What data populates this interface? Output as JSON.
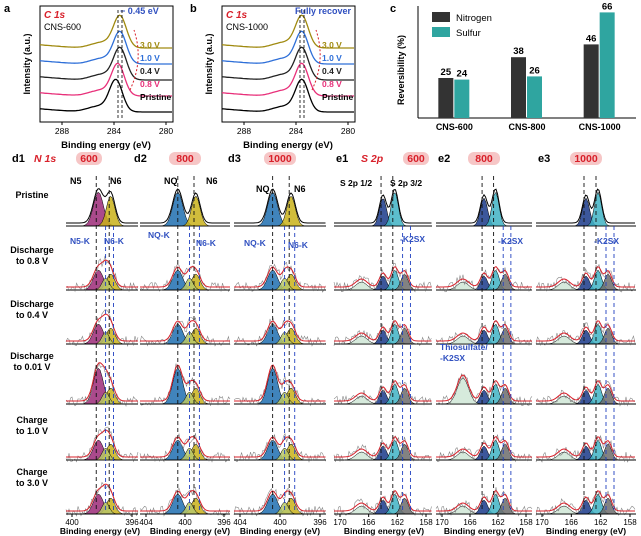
{
  "colors": {
    "pristine": "#000000",
    "v08": "#e8307a",
    "v04": "#222222",
    "v10": "#2e6fd8",
    "v30": "#a08a10",
    "fit": "#d8202a",
    "raw": "#888888",
    "dash_black": "#111111",
    "dash_blue": "#2040c0",
    "annot_blue": "#3050c0",
    "annot_red": "#d8202a",
    "title_red_bg": "#f6c6c6",
    "nitrogen_bar": "#333333",
    "sulfur_bar": "#2fa5a0",
    "n5_fill": "#9c2a78",
    "n6_fill": "#c9b21a",
    "nq_fill": "#1e6fb0",
    "n6k_fill": "#b9c86a",
    "s_dark": "#1a3a8a",
    "s_teal": "#3fb3c4",
    "s_grey": "#6c6c6c",
    "s_light": "#cfe6d6"
  },
  "panel_a": {
    "letter": "a",
    "element": "C 1s",
    "sample": "CNS-600",
    "shift": "− 0.45 eV",
    "ylabel": "Intensity (a.u.)",
    "xlabel": "Binding energy (eV)",
    "xticks": [
      "288",
      "284",
      "280"
    ]
  },
  "panel_b": {
    "letter": "b",
    "element": "C 1s",
    "sample": "CNS-1000",
    "note": "Fully recover",
    "ylabel": "Intensity (a.u.)",
    "xlabel": "Binding energy (eV)",
    "xticks": [
      "288",
      "284",
      "280"
    ]
  },
  "curve_labels": [
    {
      "text": "3.0 V",
      "key": "v30"
    },
    {
      "text": "1.0 V",
      "key": "v10"
    },
    {
      "text": "0.4 V",
      "key": "v04"
    },
    {
      "text": "0.8 V",
      "key": "v08"
    },
    {
      "text": "Pristine",
      "key": "pristine"
    }
  ],
  "chart_data": {
    "type": "bar",
    "panel_letter": "c",
    "categories": [
      "CNS-600",
      "CNS-800",
      "CNS-1000"
    ],
    "series": [
      {
        "name": "Nitrogen",
        "values": [
          25,
          38,
          46
        ]
      },
      {
        "name": "Sulfur",
        "values": [
          24,
          26,
          66
        ]
      }
    ],
    "ylabel": "Reversibility (%)",
    "xlabel": "",
    "ylim": [
      0,
      70
    ],
    "legend": "top-left"
  },
  "d_row": {
    "row_labels": [
      "Pristine",
      "Discharge to 0.8 V",
      "Discharge to 0.4 V",
      "Discharge to 0.01 V",
      "Charge to 1.0 V",
      "Charge to 3.0 V"
    ],
    "n_xlabel": "Binding energy (eV)",
    "s_xlabel": "Binding energy (eV)",
    "n_ticks": [
      "404",
      "400",
      "396"
    ],
    "n_ticks_first": [
      "400",
      "396"
    ],
    "s_ticks": [
      "170",
      "166",
      "162",
      "158"
    ],
    "panels": [
      {
        "letter": "d1",
        "element": "N 1s",
        "temp": "600"
      },
      {
        "letter": "d2",
        "temp": "800"
      },
      {
        "letter": "d3",
        "temp": "1000"
      },
      {
        "letter": "e1",
        "element": "S 2p",
        "temp": "600"
      },
      {
        "letter": "e2",
        "temp": "800"
      },
      {
        "letter": "e3",
        "temp": "1000"
      }
    ],
    "annotations": {
      "n5": "N5",
      "n6": "N6",
      "nq": "NQ",
      "n5k": "N5-K",
      "n6k": "N6-K",
      "nqk": "NQ-K",
      "s12": "S 2p 1/2",
      "s32": "S 2p 3/2",
      "k2sx": "-K2SX",
      "thio1": "Thiosulfate/",
      "thio2": "-K2SX"
    }
  }
}
